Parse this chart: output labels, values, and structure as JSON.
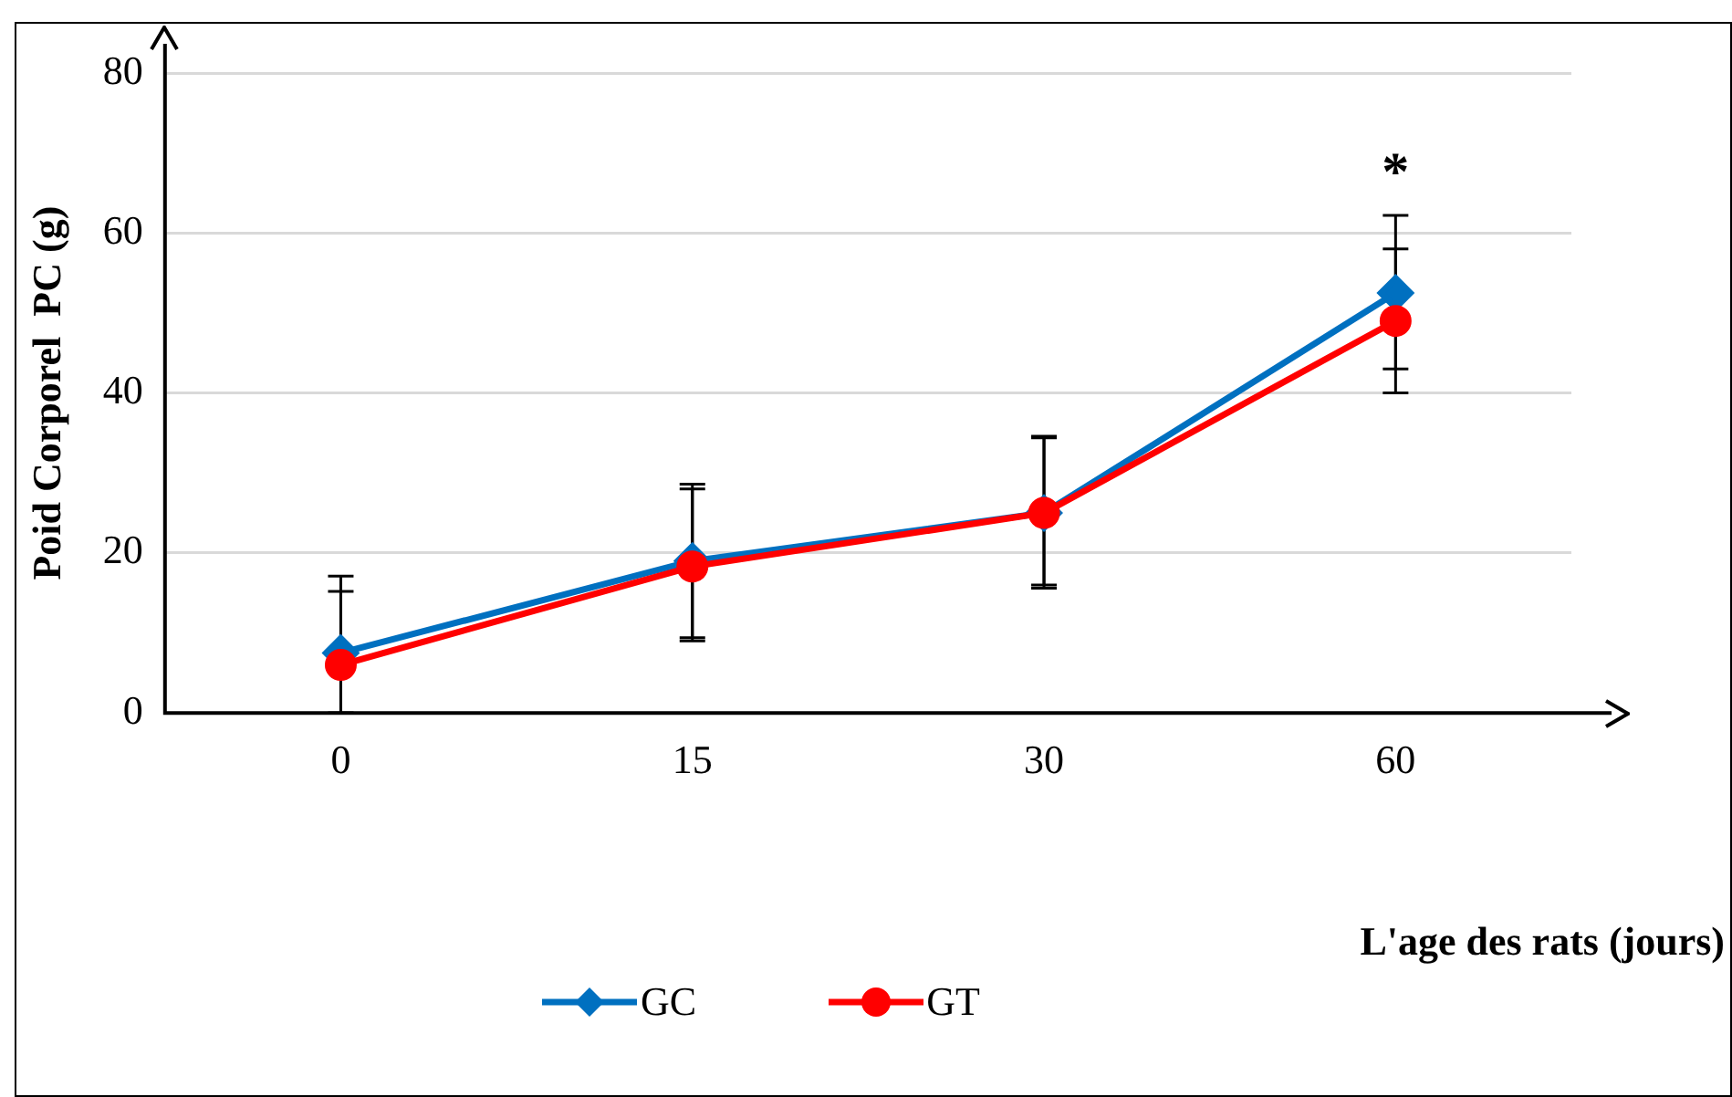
{
  "chart_data": {
    "type": "line",
    "xlabel": "L'age des rats (jours)",
    "ylabel": "Poid Corporel  PC (g)",
    "categories": [
      "0",
      "15",
      "30",
      "60"
    ],
    "series": [
      {
        "name": "GC",
        "color": "#0070c0",
        "marker": "diamond",
        "values": [
          7.5,
          19,
          25,
          52.5
        ],
        "errors": [
          [
            0,
            17.1
          ],
          [
            9.4,
            28.6
          ],
          [
            15.6,
            34.4
          ],
          [
            43,
            62.2
          ]
        ]
      },
      {
        "name": "GT",
        "color": "#ff0000",
        "marker": "circle",
        "values": [
          6,
          18.3,
          25,
          49
        ],
        "errors": [
          [
            0,
            15.2
          ],
          [
            9,
            28
          ],
          [
            16,
            34.6
          ],
          [
            40,
            58
          ]
        ]
      }
    ],
    "ylim": [
      0,
      80
    ],
    "yticks": [
      0,
      20,
      40,
      60,
      80
    ],
    "grid": "y",
    "legend": "bottom",
    "annotations": [
      "*"
    ]
  }
}
